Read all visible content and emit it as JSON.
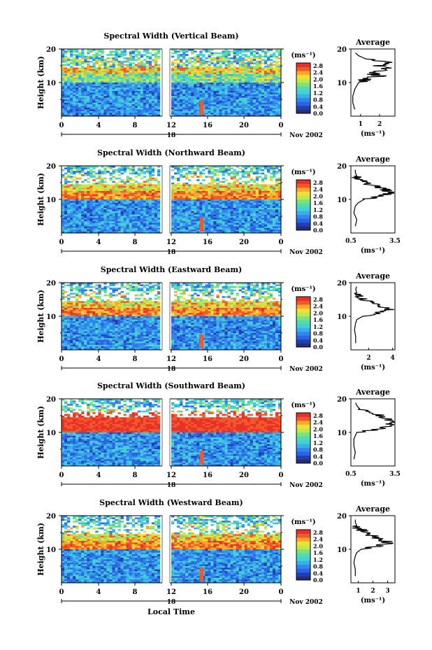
{
  "figure": {
    "xlabel": "Local Time",
    "date_label": "Nov 2002",
    "unit_label": "(ms⁻¹)",
    "avg_title": "Average",
    "avg_xlabel": "(ms⁻¹)",
    "ylabel": "Height (km)"
  },
  "colors": {
    "colormap": [
      "#2a2d6e",
      "#1f3fb8",
      "#2b63e0",
      "#2f86f0",
      "#3aaee8",
      "#45d0d8",
      "#4fdcae",
      "#7ee27a",
      "#bfe84e",
      "#f0e033",
      "#f7a92a",
      "#f2582a",
      "#e83028"
    ]
  },
  "chart_data": [
    {
      "type": "heatmap",
      "title": "Spectral Width (Vertical Beam)",
      "x_ticks": [
        "0",
        "4",
        "8",
        "12",
        "16",
        "20",
        "0"
      ],
      "x_sublabel": "18",
      "y_ticks": [
        "20",
        "10"
      ],
      "colorbar_ticks": [
        "2.8",
        "2.4",
        "2.0",
        "1.6",
        "1.2",
        "0.8",
        "0.4",
        "0.0"
      ],
      "average": {
        "x_ticks": [
          "1",
          "2"
        ],
        "xlim": [
          0.5,
          2.8
        ],
        "profile": [
          [
            2,
            0.7
          ],
          [
            4,
            0.6
          ],
          [
            6,
            0.6
          ],
          [
            8,
            0.7
          ],
          [
            9,
            0.8
          ],
          [
            10,
            0.9
          ],
          [
            11,
            1.2
          ],
          [
            12,
            2.1
          ],
          [
            13,
            1.4
          ],
          [
            14,
            2.4
          ],
          [
            15,
            1.9
          ],
          [
            16,
            2.5
          ],
          [
            17,
            1.3
          ],
          [
            18,
            0.9
          ],
          [
            19,
            0.7
          ]
        ]
      }
    },
    {
      "type": "heatmap",
      "title": "Spectral Width (Northward Beam)",
      "x_ticks": [
        "0",
        "4",
        "8",
        "12",
        "16",
        "20",
        "0"
      ],
      "x_sublabel": "18",
      "y_ticks": [
        "20",
        "10"
      ],
      "colorbar_ticks": [
        "2.8",
        "2.4",
        "2.0",
        "1.6",
        "1.2",
        "0.8",
        "0.4",
        "0.0"
      ],
      "average": {
        "x_ticks": [
          "0.5",
          "3.5"
        ],
        "xlim": [
          0.5,
          3.5
        ],
        "profile": [
          [
            2,
            0.8
          ],
          [
            4,
            0.9
          ],
          [
            6,
            0.7
          ],
          [
            8,
            0.8
          ],
          [
            9,
            1.0
          ],
          [
            10,
            1.4
          ],
          [
            11,
            2.6
          ],
          [
            12,
            3.3
          ],
          [
            13,
            2.8
          ],
          [
            14,
            2.1
          ],
          [
            15,
            1.5
          ],
          [
            16,
            1.1
          ],
          [
            17,
            0.9
          ],
          [
            18,
            0.8
          ],
          [
            19,
            0.8
          ]
        ]
      }
    },
    {
      "type": "heatmap",
      "title": "Spectral Width (Eastward Beam)",
      "x_ticks": [
        "0",
        "4",
        "8",
        "12",
        "16",
        "20",
        "0"
      ],
      "x_sublabel": "18",
      "y_ticks": [
        "20",
        "10"
      ],
      "colorbar_ticks": [
        "2.8",
        "2.4",
        "2.0",
        "1.6",
        "1.2",
        "0.8",
        "0.4",
        "0.0"
      ],
      "average": {
        "x_ticks": [
          "2",
          "4"
        ],
        "xlim": [
          0.5,
          4.2
        ],
        "profile": [
          [
            2,
            0.9
          ],
          [
            4,
            0.9
          ],
          [
            6,
            0.8
          ],
          [
            8,
            0.9
          ],
          [
            9,
            1.0
          ],
          [
            10,
            1.5
          ],
          [
            11,
            2.8
          ],
          [
            12,
            3.7
          ],
          [
            13,
            2.9
          ],
          [
            14,
            2.2
          ],
          [
            15,
            1.6
          ],
          [
            16,
            1.2
          ],
          [
            17,
            1.0
          ],
          [
            18,
            0.9
          ],
          [
            19,
            1.0
          ]
        ]
      }
    },
    {
      "type": "heatmap",
      "title": "Spectral Width (Southward Beam)",
      "x_ticks": [
        "0",
        "4",
        "8",
        "12",
        "16",
        "20",
        "0"
      ],
      "x_sublabel": "18",
      "y_ticks": [
        "20",
        "10"
      ],
      "colorbar_ticks": [
        "2.8",
        "2.4",
        "2.0",
        "1.6",
        "1.2",
        "0.8",
        "0.4",
        "0.0"
      ],
      "average": {
        "x_ticks": [
          "0.5",
          "3.5"
        ],
        "xlim": [
          0.5,
          3.5
        ],
        "profile": [
          [
            2,
            0.7
          ],
          [
            4,
            0.8
          ],
          [
            6,
            0.7
          ],
          [
            8,
            0.7
          ],
          [
            9,
            0.8
          ],
          [
            10,
            0.9
          ],
          [
            11,
            2.4
          ],
          [
            12,
            3.2
          ],
          [
            13,
            3.4
          ],
          [
            14,
            2.9
          ],
          [
            15,
            2.6
          ],
          [
            16,
            1.8
          ],
          [
            17,
            1.1
          ],
          [
            18,
            0.9
          ],
          [
            19,
            0.8
          ]
        ]
      }
    },
    {
      "type": "heatmap",
      "title": "Spectral Width (Westward Beam)",
      "x_ticks": [
        "0",
        "4",
        "8",
        "12",
        "16",
        "20",
        "0"
      ],
      "x_sublabel": "18",
      "y_ticks": [
        "20",
        "10"
      ],
      "colorbar_ticks": [
        "2.8",
        "2.4",
        "2.0",
        "1.6",
        "1.2",
        "0.8",
        "0.4",
        "0.0"
      ],
      "average": {
        "x_ticks": [
          "1",
          "2",
          "3"
        ],
        "xlim": [
          0.5,
          3.5
        ],
        "profile": [
          [
            2,
            0.8
          ],
          [
            4,
            0.8
          ],
          [
            6,
            0.7
          ],
          [
            8,
            0.8
          ],
          [
            9,
            0.9
          ],
          [
            10,
            1.2
          ],
          [
            11,
            2.4
          ],
          [
            12,
            3.1
          ],
          [
            13,
            2.5
          ],
          [
            14,
            2.0
          ],
          [
            15,
            1.4
          ],
          [
            16,
            1.1
          ],
          [
            17,
            0.9
          ],
          [
            18,
            0.8
          ],
          [
            19,
            0.8
          ]
        ]
      }
    }
  ]
}
